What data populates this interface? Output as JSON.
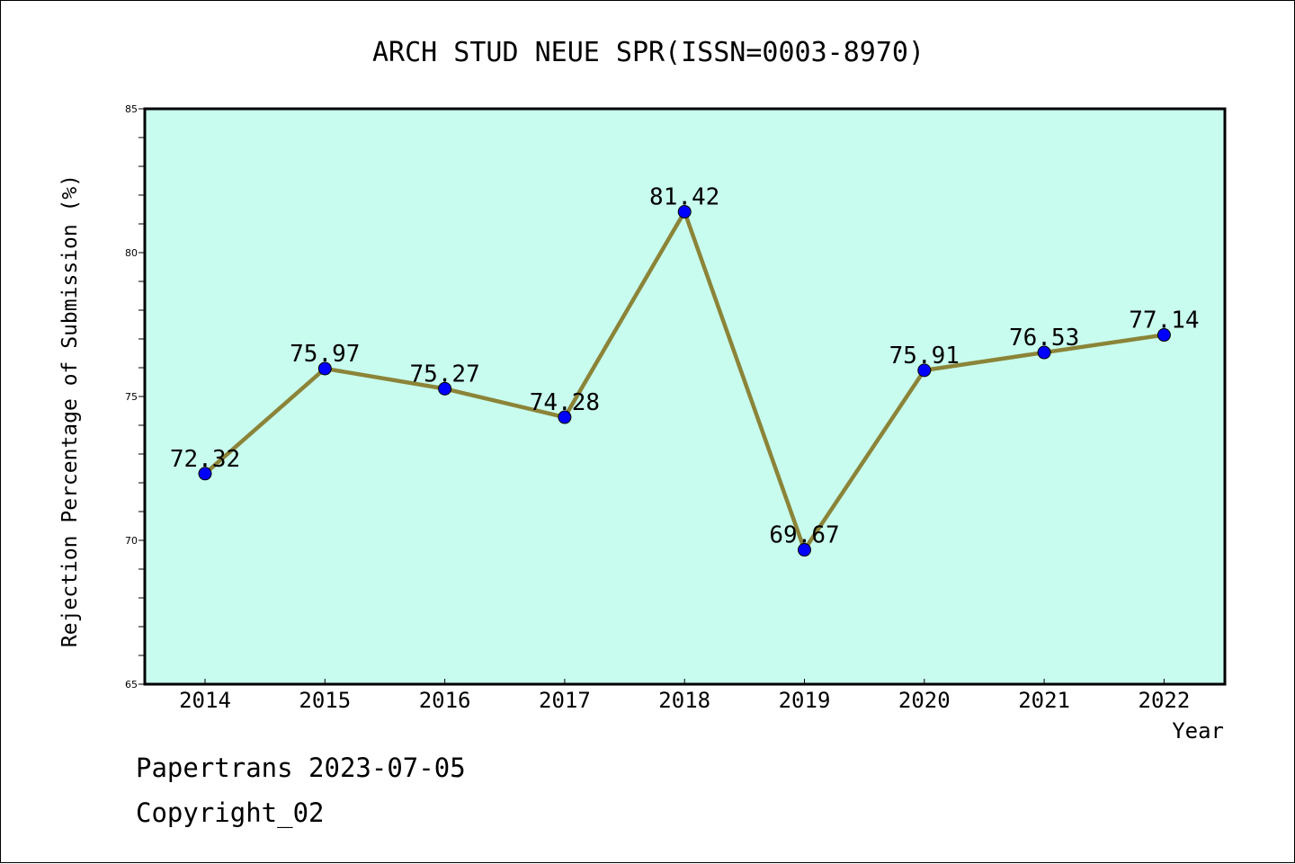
{
  "chart_data": {
    "type": "line",
    "title": "ARCH STUD NEUE SPR(ISSN=0003-8970)",
    "xlabel": "Year",
    "ylabel": "Rejection Percentage of Submission (%)",
    "categories": [
      "2014",
      "2015",
      "2016",
      "2017",
      "2018",
      "2019",
      "2020",
      "2021",
      "2022"
    ],
    "series": [
      {
        "values": [
          72.32,
          75.97,
          75.27,
          74.28,
          81.42,
          69.67,
          75.91,
          76.53,
          77.14
        ],
        "labels": [
          "72.32",
          "75.97",
          "75.27",
          "74.28",
          "81.42",
          "69.67",
          "75.91",
          "76.53",
          "77.14"
        ]
      }
    ],
    "ylim": [
      65,
      85
    ],
    "yticks": [
      "65",
      "70",
      "75",
      "80",
      "85"
    ],
    "grid": false,
    "legend": "none",
    "colors": {
      "plot_background": "#c8fcee",
      "line": "#8b8438",
      "marker": "#0000ff"
    }
  },
  "footer": {
    "line1": "Papertrans 2023-07-05",
    "line2": "Copyright_02"
  }
}
